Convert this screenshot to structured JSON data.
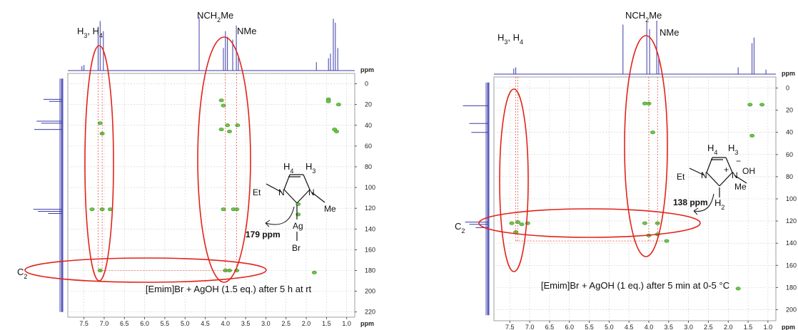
{
  "chart_data": [
    {
      "type": "heatmap",
      "title": "",
      "xlabel": "ppm",
      "ylabel": "ppm",
      "xlim": [
        7.9,
        0.8
      ],
      "ylim": [
        -10,
        225
      ],
      "x_ticks": [
        "7.5",
        "7.0",
        "6.5",
        "6.0",
        "5.5",
        "5.0",
        "4.5",
        "4.0",
        "3.5",
        "3.0",
        "2.5",
        "2.0",
        "1.5",
        "1.0"
      ],
      "y_ticks": [
        "0",
        "20",
        "40",
        "60",
        "80",
        "100",
        "120",
        "140",
        "160",
        "180",
        "200",
        "220"
      ],
      "caption": "[Emim]Br + AgOH (1.5 eq.) after 5 h at rt",
      "peak_labels": {
        "h34": "H3, H4",
        "nch2": "NCH2Me",
        "nme": "NMe",
        "c2": "C2"
      },
      "structure": {
        "h4": "H4",
        "h3": "H3",
        "et": "Et",
        "n1": "N",
        "n2": "N",
        "me": "Me",
        "ag": "Ag",
        "br": "Br"
      },
      "shift_annotation": "179 ppm",
      "proton_peaks": [
        {
          "x": 7.55,
          "y": 8
        },
        {
          "x": 7.5,
          "y": 10
        },
        {
          "x": 7.15,
          "y": 78
        },
        {
          "x": 7.1,
          "y": 88
        },
        {
          "x": 7.02,
          "y": 70
        },
        {
          "x": 4.65,
          "y": 95
        },
        {
          "x": 4.05,
          "y": 40
        },
        {
          "x": 4.0,
          "y": 70
        },
        {
          "x": 3.95,
          "y": 60
        },
        {
          "x": 3.82,
          "y": 55
        },
        {
          "x": 3.73,
          "y": 80
        },
        {
          "x": 3.68,
          "y": 25
        },
        {
          "x": 1.75,
          "y": 15
        },
        {
          "x": 1.45,
          "y": 22
        },
        {
          "x": 1.4,
          "y": 30
        },
        {
          "x": 1.33,
          "y": 92
        },
        {
          "x": 1.28,
          "y": 85
        },
        {
          "x": 1.22,
          "y": 40
        }
      ],
      "carbon_peaks": [
        {
          "y": 15,
          "v": 40
        },
        {
          "y": 17,
          "v": 28
        },
        {
          "y": 36,
          "v": 55
        },
        {
          "y": 38,
          "v": 45
        },
        {
          "y": 44,
          "v": 60
        },
        {
          "y": 121,
          "v": 62
        },
        {
          "y": 123,
          "v": 52
        },
        {
          "y": 125,
          "v": 30
        }
      ],
      "cross_peaks": [
        {
          "x": 7.1,
          "y": 38
        },
        {
          "x": 7.05,
          "y": 48
        },
        {
          "x": 7.3,
          "y": 121
        },
        {
          "x": 7.05,
          "y": 121
        },
        {
          "x": 6.85,
          "y": 121
        },
        {
          "x": 7.1,
          "y": 180
        },
        {
          "x": 4.1,
          "y": 16
        },
        {
          "x": 4.05,
          "y": 21
        },
        {
          "x": 4.1,
          "y": 44
        },
        {
          "x": 3.95,
          "y": 40
        },
        {
          "x": 3.9,
          "y": 46
        },
        {
          "x": 3.7,
          "y": 40
        },
        {
          "x": 4.05,
          "y": 121
        },
        {
          "x": 3.8,
          "y": 121
        },
        {
          "x": 3.72,
          "y": 121
        },
        {
          "x": 4.0,
          "y": 180
        },
        {
          "x": 3.72,
          "y": 180
        },
        {
          "x": 3.9,
          "y": 180
        },
        {
          "x": 1.45,
          "y": 15
        },
        {
          "x": 1.45,
          "y": 17
        },
        {
          "x": 1.2,
          "y": 20
        },
        {
          "x": 1.3,
          "y": 44
        },
        {
          "x": 1.25,
          "y": 46
        },
        {
          "x": 1.8,
          "y": 182
        },
        {
          "x": 2.2,
          "y": 116
        },
        {
          "x": 2.2,
          "y": 126
        }
      ]
    },
    {
      "type": "heatmap",
      "title": "",
      "xlabel": "ppm",
      "ylabel": "ppm",
      "xlim": [
        7.9,
        0.8
      ],
      "ylim": [
        -10,
        210
      ],
      "x_ticks": [
        "7.5",
        "7.0",
        "6.5",
        "6.0",
        "5.5",
        "5.0",
        "4.5",
        "4.0",
        "3.5",
        "3.0",
        "2.5",
        "2.0",
        "1.5",
        "1.0"
      ],
      "y_ticks": [
        "0",
        "20",
        "40",
        "60",
        "80",
        "100",
        "120",
        "140",
        "160",
        "180",
        "200"
      ],
      "caption": "[Emim]Br + AgOH (1 eq.) after 5 min at 0-5 °C",
      "peak_labels": {
        "h34": "H3, H4",
        "nch2": "NCH2Me",
        "nme": "NMe",
        "c2": "C2"
      },
      "structure": {
        "h4": "H4",
        "h3": "H3",
        "et": "Et",
        "n1": "N",
        "n2": "N",
        "me": "Me",
        "h2": "H2",
        "oh": "OH",
        "minus": "−",
        "plus": "+"
      },
      "shift_annotation": "138 ppm",
      "proton_peaks": [
        {
          "x": 7.4,
          "y": 10
        },
        {
          "x": 7.35,
          "y": 12
        },
        {
          "x": 4.65,
          "y": 88
        },
        {
          "x": 4.05,
          "y": 92
        },
        {
          "x": 3.98,
          "y": 80
        },
        {
          "x": 3.8,
          "y": 95
        },
        {
          "x": 3.75,
          "y": 28
        },
        {
          "x": 1.75,
          "y": 12
        },
        {
          "x": 1.4,
          "y": 55
        },
        {
          "x": 1.35,
          "y": 65
        },
        {
          "x": 1.05,
          "y": 8
        }
      ],
      "carbon_peaks": [
        {
          "y": 16,
          "v": 60
        },
        {
          "y": 32,
          "v": 45
        },
        {
          "y": 40,
          "v": 40
        },
        {
          "y": 121,
          "v": 55
        },
        {
          "y": 123,
          "v": 45
        },
        {
          "y": 126,
          "v": 30
        }
      ],
      "cross_peaks": [
        {
          "x": 7.45,
          "y": 122
        },
        {
          "x": 7.3,
          "y": 121
        },
        {
          "x": 7.2,
          "y": 123
        },
        {
          "x": 7.05,
          "y": 122
        },
        {
          "x": 7.35,
          "y": 130
        },
        {
          "x": 4.1,
          "y": 14
        },
        {
          "x": 4.0,
          "y": 14
        },
        {
          "x": 3.9,
          "y": 40
        },
        {
          "x": 4.1,
          "y": 122
        },
        {
          "x": 3.78,
          "y": 122
        },
        {
          "x": 3.78,
          "y": 132
        },
        {
          "x": 4.0,
          "y": 133
        },
        {
          "x": 3.55,
          "y": 138
        },
        {
          "x": 1.45,
          "y": 15
        },
        {
          "x": 1.15,
          "y": 15
        },
        {
          "x": 1.4,
          "y": 43
        },
        {
          "x": 1.75,
          "y": 181
        }
      ]
    }
  ]
}
